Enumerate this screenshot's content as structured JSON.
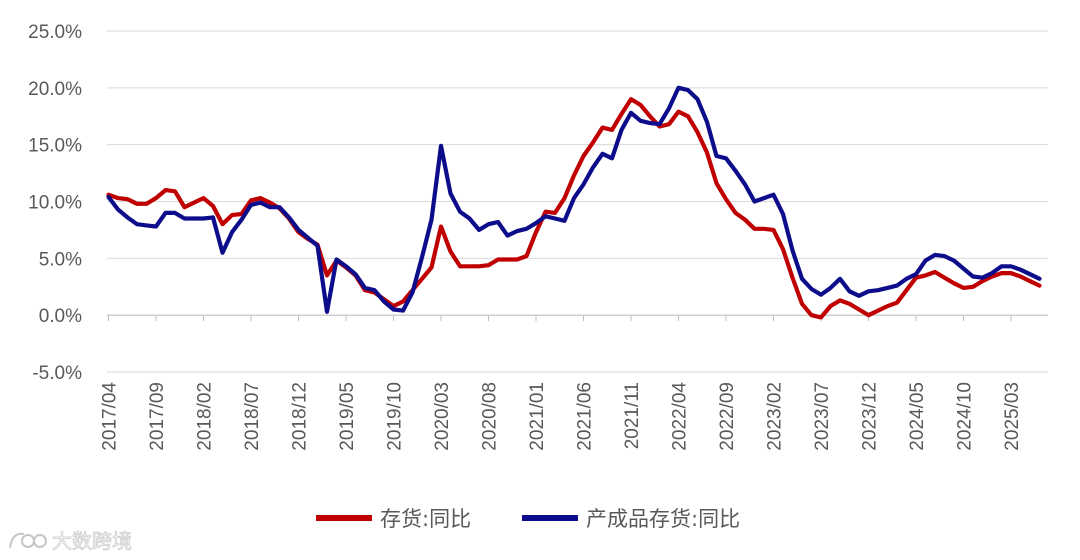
{
  "chart_data": {
    "type": "line",
    "title": "",
    "xlabel": "",
    "ylabel": "",
    "ylim": [
      -5,
      25
    ],
    "y_ticks": [
      "-5.0%",
      "0.0%",
      "5.0%",
      "10.0%",
      "15.0%",
      "20.0%",
      "25.0%"
    ],
    "y_tick_values": [
      -5,
      0,
      5,
      10,
      15,
      20,
      25
    ],
    "x_tick_labels": [
      "2017/04",
      "2017/09",
      "2018/02",
      "2018/07",
      "2018/12",
      "2019/05",
      "2019/10",
      "2020/03",
      "2020/08",
      "2021/01",
      "2021/06",
      "2021/11",
      "2022/04",
      "2022/09",
      "2023/02",
      "2023/07",
      "2023/12",
      "2024/05",
      "2024/10",
      "2025/03"
    ],
    "x_start": "2017/04",
    "x_end": "2025/07",
    "grid": "horizontal",
    "legend_position": "bottom",
    "series": [
      {
        "name": "存货:同比",
        "color": "#c00000",
        "values": [
          10.6,
          10.3,
          10.2,
          9.8,
          9.8,
          10.3,
          11.0,
          10.9,
          9.5,
          9.9,
          10.3,
          9.6,
          8.0,
          8.8,
          8.9,
          10.1,
          10.3,
          9.9,
          9.4,
          8.5,
          7.3,
          6.7,
          6.2,
          3.5,
          4.8,
          4.2,
          3.5,
          2.2,
          2.0,
          1.4,
          0.8,
          1.2,
          2.2,
          3.2,
          4.2,
          7.8,
          5.6,
          4.3,
          4.3,
          4.3,
          4.4,
          4.9,
          4.9,
          4.9,
          5.2,
          7.3,
          9.1,
          9.0,
          10.3,
          12.3,
          14.0,
          15.2,
          16.5,
          16.3,
          17.7,
          19.0,
          18.5,
          17.5,
          16.6,
          16.8,
          17.9,
          17.5,
          16.1,
          14.3,
          11.6,
          10.2,
          9.0,
          8.4,
          7.6,
          7.6,
          7.5,
          5.8,
          3.3,
          1.0,
          0.0,
          -0.2,
          0.8,
          1.3,
          1.0,
          0.5,
          0.0,
          0.4,
          0.8,
          1.1,
          2.2,
          3.3,
          3.5,
          3.8,
          3.3,
          2.8,
          2.4,
          2.5,
          3.0,
          3.4,
          3.7,
          3.7,
          3.4,
          3.0,
          2.6
        ]
      },
      {
        "name": "产成品存货:同比",
        "color": "#0d0d8c",
        "values": [
          10.4,
          9.3,
          8.6,
          8.0,
          7.9,
          7.8,
          9.0,
          9.0,
          8.5,
          8.5,
          8.5,
          8.6,
          5.5,
          7.3,
          8.4,
          9.7,
          9.9,
          9.5,
          9.5,
          8.6,
          7.5,
          6.8,
          6.1,
          0.3,
          4.9,
          4.3,
          3.6,
          2.4,
          2.2,
          1.2,
          0.5,
          0.4,
          2.0,
          5.1,
          8.4,
          14.9,
          10.7,
          9.1,
          8.5,
          7.5,
          8.0,
          8.2,
          7.0,
          7.4,
          7.6,
          8.1,
          8.7,
          8.5,
          8.3,
          10.3,
          11.5,
          13.0,
          14.2,
          13.8,
          16.3,
          17.8,
          17.1,
          16.9,
          16.8,
          18.2,
          20.0,
          19.8,
          19.0,
          17.0,
          14.0,
          13.8,
          12.7,
          11.5,
          10.0,
          10.3,
          10.6,
          8.9,
          5.7,
          3.2,
          2.3,
          1.8,
          2.4,
          3.2,
          2.1,
          1.7,
          2.1,
          2.2,
          2.4,
          2.6,
          3.2,
          3.6,
          4.8,
          5.3,
          5.2,
          4.8,
          4.1,
          3.4,
          3.3,
          3.7,
          4.3,
          4.3,
          4.0,
          3.6,
          3.2
        ]
      }
    ]
  },
  "watermark": {
    "text": "大数跨境",
    "icon": "dashuju-logo-icon"
  }
}
